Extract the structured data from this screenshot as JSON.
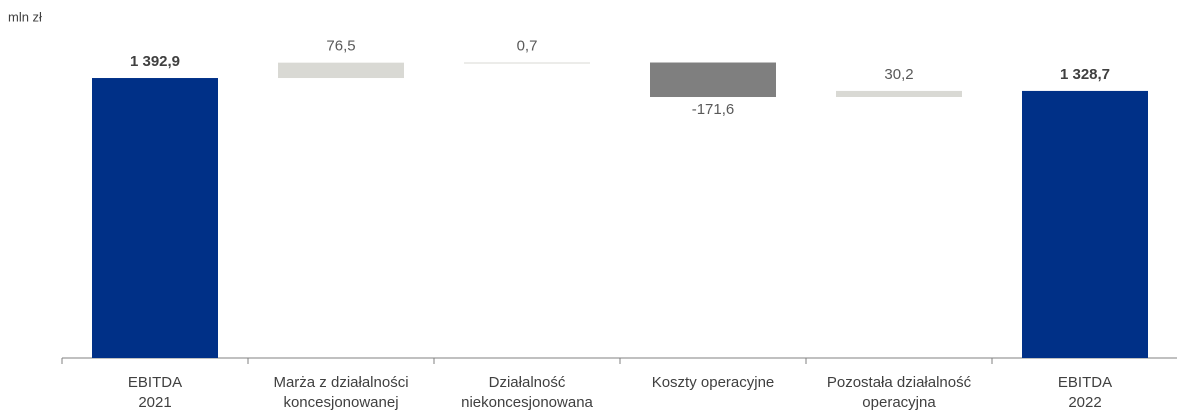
{
  "chart_data": {
    "type": "waterfall",
    "y_label": "mln zł",
    "categories": [
      "EBITDA\n2021",
      "Marża z działalności\nkoncesjonowanej",
      "Działalność\nniekoncesjonowana",
      "Koszty operacyjne",
      "Pozostała działalność\noperacyjna",
      "EBITDA\n2022"
    ],
    "values": [
      1392.9,
      76.5,
      0.7,
      -171.6,
      30.2,
      1328.7
    ],
    "value_labels": [
      "1 392,9",
      "76,5",
      "0,7",
      "-171,6",
      "30,2",
      "1 328,7"
    ],
    "measure": [
      "absolute",
      "relative",
      "relative",
      "relative",
      "relative",
      "absolute"
    ],
    "colors": [
      "#003087",
      "#d9d9d4",
      "#d9d9d4",
      "#7f7f7f",
      "#d9d9d4",
      "#003087"
    ],
    "ylim": [
      0,
      1500
    ]
  }
}
